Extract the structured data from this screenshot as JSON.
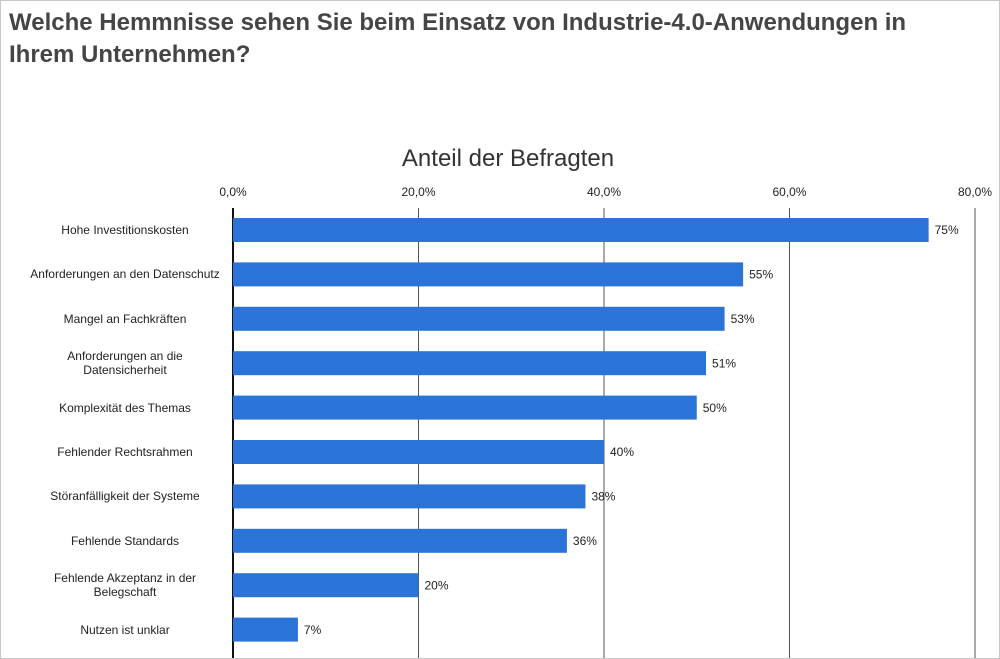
{
  "chart_data": {
    "type": "bar",
    "orientation": "horizontal",
    "title": "Welche Hemmnisse sehen Sie beim Einsatz von Industrie-4.0-Anwendungen in Ihrem Unternehmen?",
    "x_label": "Anteil der Befragten",
    "categories": [
      "Hohe Investitionskosten",
      "Anforderungen an den Datenschutz",
      "Mangel an Fachkräften",
      "Anforderungen an die Datensicherheit",
      "Komplexität des Themas",
      "Fehlender Rechtsrahmen",
      "Störanfälligkeit der Systeme",
      "Fehlende Standards",
      "Fehlende Akzeptanz in der Belegschaft",
      "Nutzen ist unklar"
    ],
    "values": [
      75,
      55,
      53,
      51,
      50,
      40,
      38,
      36,
      20,
      7
    ],
    "value_labels": [
      "75%",
      "55%",
      "53%",
      "51%",
      "50%",
      "40%",
      "38%",
      "36%",
      "20%",
      "7%"
    ],
    "color": "#2a74d8",
    "xlim": [
      0,
      80
    ],
    "xticks": [
      {
        "value": 0,
        "label": "0,0%"
      },
      {
        "value": 20,
        "label": "20,0%"
      },
      {
        "value": 40,
        "label": "40,0%"
      },
      {
        "value": 60,
        "label": "60,0%"
      },
      {
        "value": 80,
        "label": "80,0%"
      }
    ],
    "grid": true
  }
}
